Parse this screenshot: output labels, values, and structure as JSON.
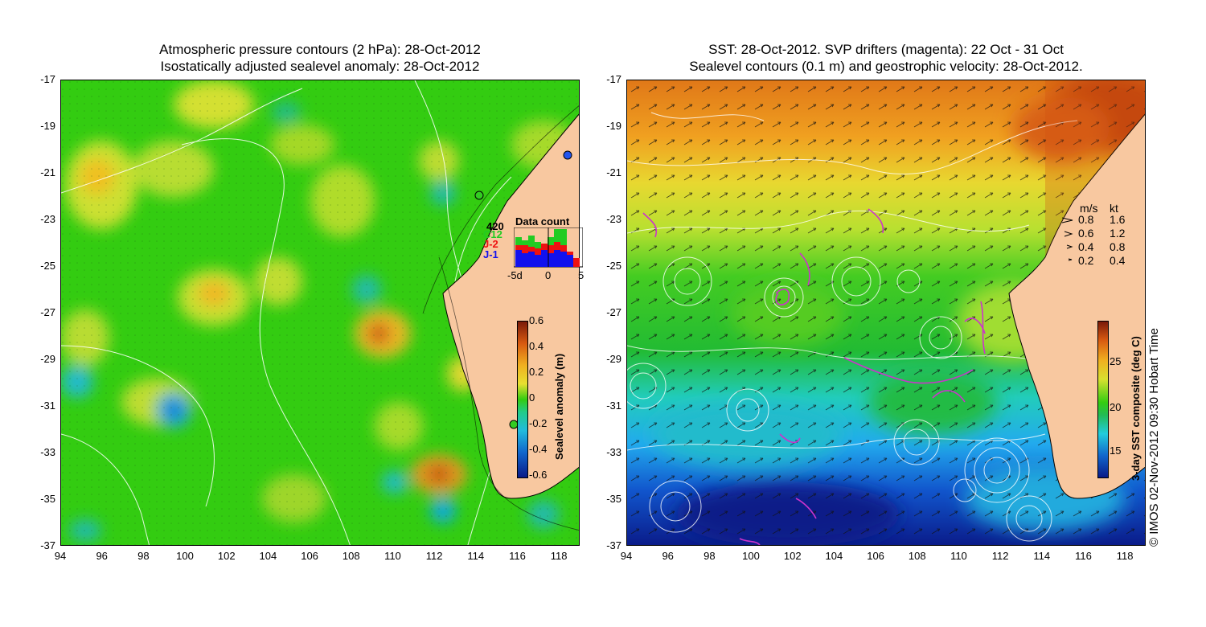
{
  "left_panel": {
    "title_line1": "Atmospheric pressure contours (2 hPa): 28-Oct-2012",
    "title_line2": "Isostatically adjusted sealevel anomaly: 28-Oct-2012",
    "colorbar": {
      "label": "Sealevel anomaly (m)",
      "ticks": [
        "0.6",
        "0.4",
        "0.2",
        "0",
        "-0.2",
        "-0.4",
        "-0.6"
      ],
      "range": [
        -0.6,
        0.6
      ]
    },
    "data_count": {
      "title": "Data count",
      "max_label": "420",
      "series": [
        {
          "name": "C12",
          "color": "#22cc22"
        },
        {
          "name": "J-2",
          "color": "#ee1111"
        },
        {
          "name": "J-1",
          "color": "#1111ee"
        }
      ],
      "x_ticks": [
        "-5d",
        "0",
        "5"
      ]
    }
  },
  "right_panel": {
    "title_line1": "SST: 28-Oct-2012. SVP drifters (magenta): 22 Oct - 31 Oct",
    "title_line2": "Sealevel contours (0.1 m) and geostrophic velocity: 28-Oct-2012.",
    "colorbar": {
      "label": "3-day SST composite (deg C)",
      "ticks": [
        "25",
        "20",
        "15"
      ],
      "range": [
        12,
        29
      ]
    },
    "velocity_legend": {
      "header_ms": "m/s",
      "header_kt": "kt",
      "rows": [
        {
          "ms": "0.8",
          "kt": "1.6"
        },
        {
          "ms": "0.6",
          "kt": "1.2"
        },
        {
          "ms": "0.4",
          "kt": "0.8"
        },
        {
          "ms": "0.2",
          "kt": "0.4"
        }
      ]
    }
  },
  "axes": {
    "lat_ticks": [
      "-17",
      "-19",
      "-21",
      "-23",
      "-25",
      "-27",
      "-29",
      "-31",
      "-33",
      "-35",
      "-37"
    ],
    "lon_ticks": [
      "94",
      "96",
      "98",
      "100",
      "102",
      "104",
      "106",
      "108",
      "110",
      "112",
      "114",
      "116",
      "118"
    ],
    "lat_range": [
      -37,
      -17
    ],
    "lon_range": [
      94,
      119
    ]
  },
  "credit": "© IMOS 02-Nov-2012 09:30 Hobart Time",
  "colors": {
    "land": "#f8c8a0",
    "ocean_base_left": "#22cc00",
    "drifter": "#cc33cc",
    "contour": "#ffffff"
  }
}
